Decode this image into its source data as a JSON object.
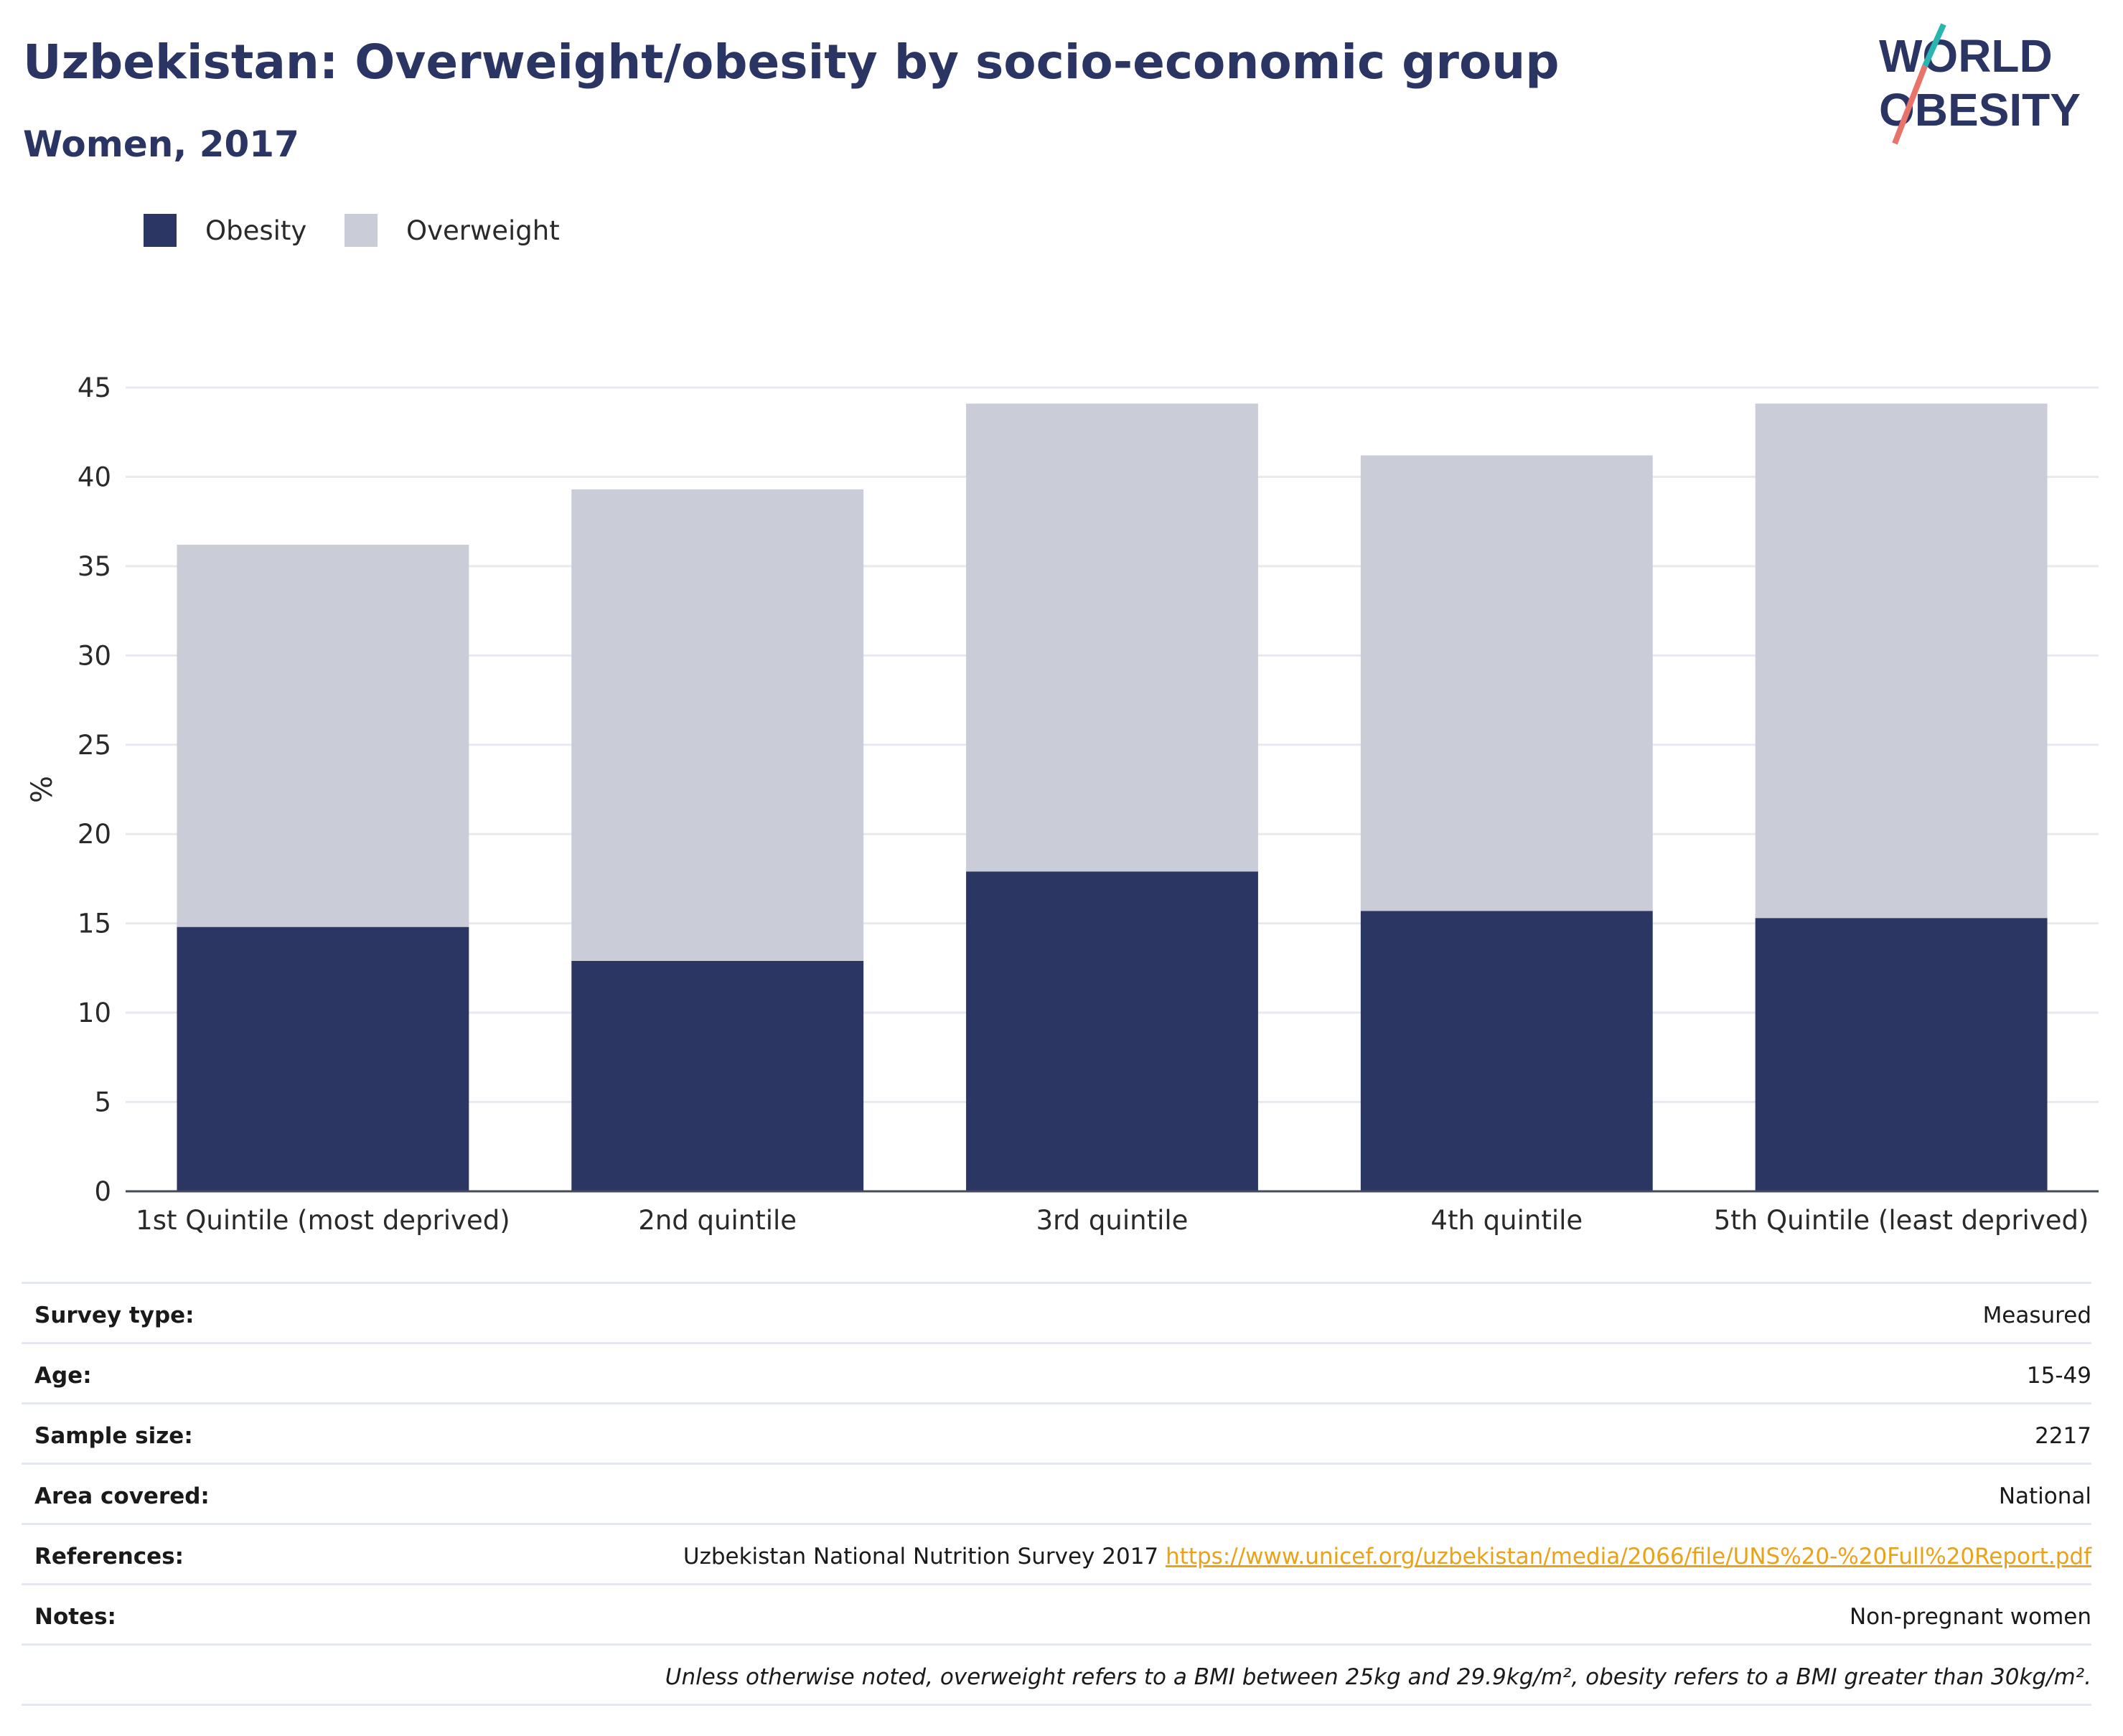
{
  "header": {
    "title": "Uzbekistan: Overweight/obesity by socio-economic group",
    "subtitle": "Women, 2017"
  },
  "logo": {
    "line1": "WORLD",
    "line2": "OBESITY",
    "slash_colors": [
      "#2bb5b0",
      "#e8736a"
    ]
  },
  "legend": [
    {
      "label": "Obesity",
      "color": "#2b3663"
    },
    {
      "label": "Overweight",
      "color": "#caccd7"
    }
  ],
  "chart_data": {
    "type": "bar",
    "stacked": true,
    "categories": [
      "1st Quintile (most deprived)",
      "2nd quintile",
      "3rd quintile",
      "4th quintile",
      "5th Quintile (least deprived)"
    ],
    "series": [
      {
        "name": "Obesity",
        "color": "#2b3663",
        "values": [
          14.8,
          12.9,
          17.9,
          15.7,
          15.3
        ]
      },
      {
        "name": "Overweight",
        "color": "#caccd7",
        "values": [
          21.4,
          26.4,
          26.2,
          25.5,
          28.8
        ]
      }
    ],
    "ylabel": "%",
    "xlabel": "",
    "ylim": [
      0,
      45
    ],
    "yticks": [
      0,
      5,
      10,
      15,
      20,
      25,
      30,
      35,
      40,
      45
    ],
    "grid": true,
    "legend_position": "top-left"
  },
  "info": [
    {
      "key": "Survey type:",
      "value": "Measured"
    },
    {
      "key": "Age:",
      "value": "15-49"
    },
    {
      "key": "Sample size:",
      "value": "2217"
    },
    {
      "key": "Area covered:",
      "value": "National"
    },
    {
      "key": "References:",
      "value": "Uzbekistan National Nutrition Survey 2017",
      "link": "https://www.unicef.org/uzbekistan/media/2066/file/UNS%20-%20Full%20Report.pdf"
    },
    {
      "key": "Notes:",
      "value": "Non-pregnant women"
    }
  ],
  "footnote": "Unless otherwise noted, overweight refers to a BMI between 25kg and 29.9kg/m², obesity refers to a BMI greater than 30kg/m²."
}
